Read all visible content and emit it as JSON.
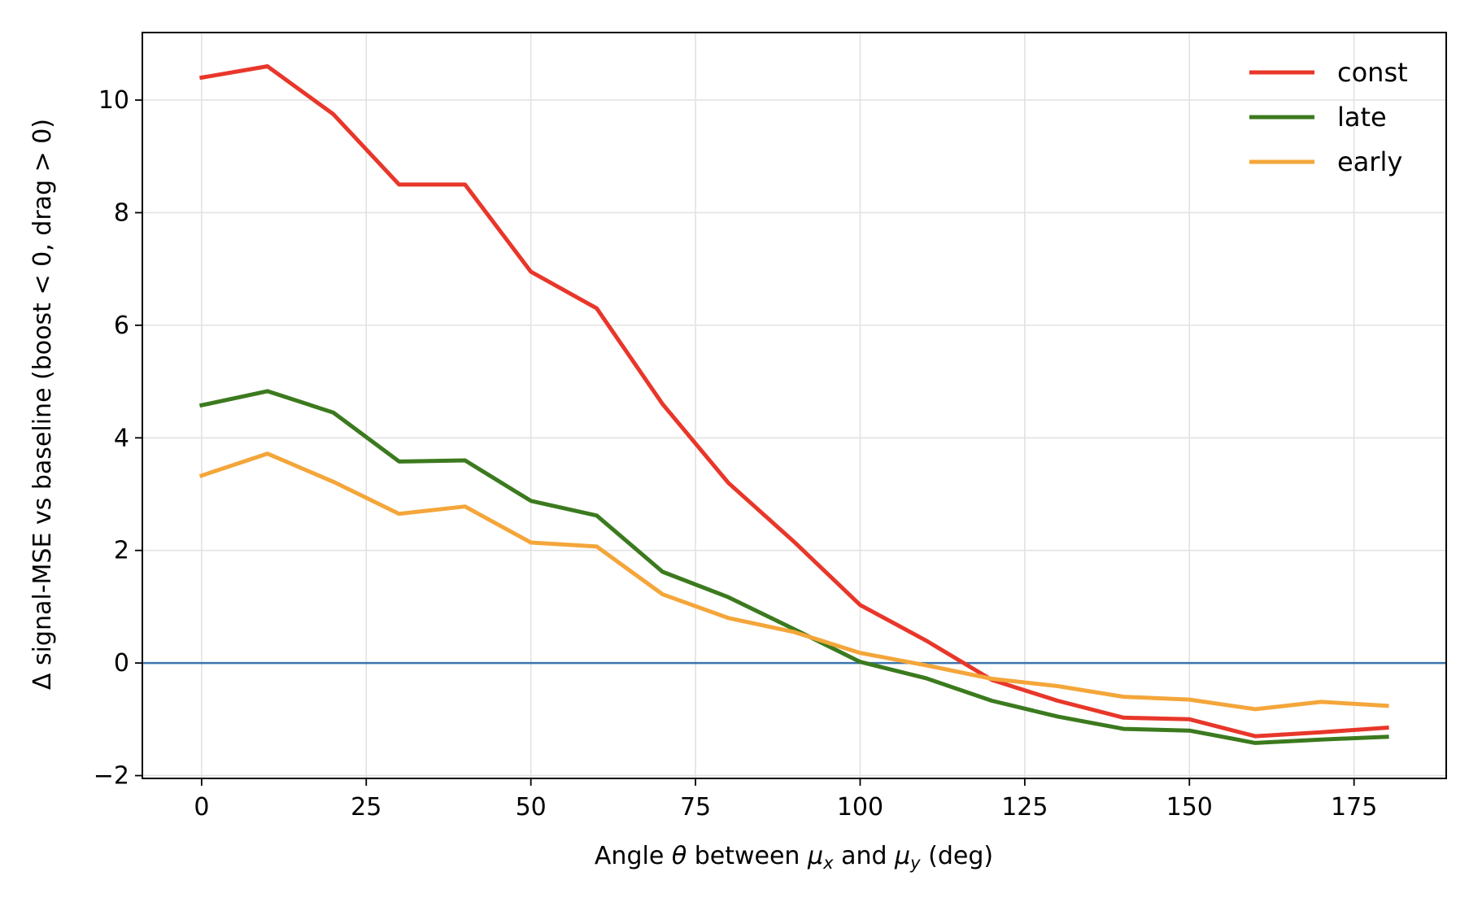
{
  "chart_data": {
    "type": "line",
    "title": "",
    "xlabel": "Angle θ between μx and μy (deg)",
    "xlabel_parts": {
      "prefix": "Angle ",
      "theta": "θ",
      "middle1": " between ",
      "mu1": "μ",
      "sub1": "x",
      "middle2": " and ",
      "mu2": "μ",
      "sub2": "y",
      "suffix": " (deg)"
    },
    "ylabel": "Δ signal-MSE vs baseline (boost < 0, drag > 0)",
    "xlim": [
      -9,
      189
    ],
    "ylim": [
      -2.05,
      11.2
    ],
    "xticks": [
      0,
      25,
      50,
      75,
      100,
      125,
      150,
      175
    ],
    "xtick_labels": [
      "0",
      "25",
      "50",
      "75",
      "100",
      "125",
      "150",
      "175"
    ],
    "yticks": [
      -2,
      0,
      2,
      4,
      6,
      8,
      10
    ],
    "ytick_labels": [
      "−2",
      "0",
      "2",
      "4",
      "6",
      "8",
      "10"
    ],
    "grid": true,
    "legend_position": "top-right",
    "reference_line": {
      "y": 0,
      "color": "#3a75ad"
    },
    "x": [
      0,
      10,
      20,
      30,
      40,
      50,
      60,
      70,
      80,
      90,
      100,
      110,
      120,
      130,
      140,
      150,
      160,
      170,
      180
    ],
    "series": [
      {
        "name": "const",
        "color": "#e8372a",
        "values": [
          10.4,
          10.6,
          9.75,
          8.5,
          8.5,
          6.95,
          6.3,
          4.6,
          3.2,
          2.15,
          1.03,
          0.4,
          -0.3,
          -0.67,
          -0.97,
          -1.0,
          -1.3,
          -1.23,
          -1.15
        ]
      },
      {
        "name": "late",
        "color": "#3b7a1e",
        "values": [
          4.58,
          4.83,
          4.45,
          3.58,
          3.6,
          2.88,
          2.62,
          1.62,
          1.17,
          0.6,
          0.02,
          -0.27,
          -0.67,
          -0.95,
          -1.17,
          -1.2,
          -1.42,
          -1.36,
          -1.31
        ]
      },
      {
        "name": "early",
        "color": "#f4a63a",
        "values": [
          3.33,
          3.72,
          3.22,
          2.65,
          2.78,
          2.14,
          2.07,
          1.22,
          0.8,
          0.55,
          0.18,
          -0.04,
          -0.28,
          -0.41,
          -0.6,
          -0.65,
          -0.82,
          -0.69,
          -0.76
        ]
      }
    ]
  }
}
